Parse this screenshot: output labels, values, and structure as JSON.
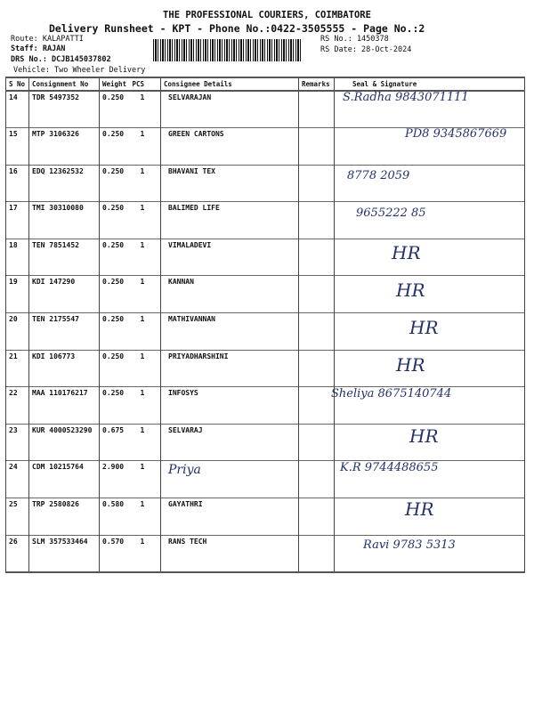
{
  "header": {
    "company": "THE PROFESSIONAL COURIERS, COIMBATORE",
    "subtitle": "Delivery Runsheet - KPT - Phone No.:0422-3505555 - Page No.:2",
    "route": "Route: KALAPATTI",
    "staff": "Staff: RAJAN",
    "drs_no": "DRS No.: DCJB145037802",
    "vehicle": "Vehicle: Two Wheeler Delivery",
    "rs_no": "RS No.: 1450378",
    "rs_date": "RS Date: 28-Oct-2024"
  },
  "table": {
    "columns": [
      "S No",
      "Consignment No",
      "Weight",
      "PCS",
      "Consignee Details",
      "Remarks",
      "Seal & Signature"
    ],
    "rows": [
      {
        "sno": "14",
        "cons": "TDR 5497352",
        "wt": "0.250",
        "pcs": "1",
        "name": "SELVARAJAN"
      },
      {
        "sno": "15",
        "cons": "MTP 3106326",
        "wt": "0.250",
        "pcs": "1",
        "name": "GREEN CARTONS"
      },
      {
        "sno": "16",
        "cons": "EDQ 12362532",
        "wt": "0.250",
        "pcs": "1",
        "name": "BHAVANI TEX"
      },
      {
        "sno": "17",
        "cons": "TMI 30310080",
        "wt": "0.250",
        "pcs": "1",
        "name": "BALIMED LIFE"
      },
      {
        "sno": "18",
        "cons": "TEN 7851452",
        "wt": "0.250",
        "pcs": "1",
        "name": "VIMALADEVI"
      },
      {
        "sno": "19",
        "cons": "KDI 147290",
        "wt": "0.250",
        "pcs": "1",
        "name": "KANNAN"
      },
      {
        "sno": "20",
        "cons": "TEN 2175547",
        "wt": "0.250",
        "pcs": "1",
        "name": "MATHIVANNAN"
      },
      {
        "sno": "21",
        "cons": "KDI 106773",
        "wt": "0.250",
        "pcs": "1",
        "name": "PRIYADHARSHINI"
      },
      {
        "sno": "22",
        "cons": "MAA 110176217",
        "wt": "0.250",
        "pcs": "1",
        "name": "INFOSYS"
      },
      {
        "sno": "23",
        "cons": "KUR 4000523290",
        "wt": "0.675",
        "pcs": "1",
        "name": "SELVARAJ"
      },
      {
        "sno": "24",
        "cons": "CDM 10215764",
        "wt": "2.900",
        "pcs": "1",
        "name": "Priya"
      },
      {
        "sno": "25",
        "cons": "TRP 2580826",
        "wt": "0.580",
        "pcs": "1",
        "name": "GAYATHRI"
      },
      {
        "sno": "26",
        "cons": "SLM 357533464",
        "wt": "0.570",
        "pcs": "1",
        "name": "RANS TECH"
      }
    ]
  },
  "signatures": [
    "S.Radha 9843071111",
    "PD8 9345867669",
    "8778 2059",
    "9655222 85",
    "HR",
    "HR",
    "HR",
    "HR",
    "Sheliya 8675140744",
    "HR",
    "K.R 9744488655",
    "HR",
    "Ravi 9783 5313"
  ]
}
